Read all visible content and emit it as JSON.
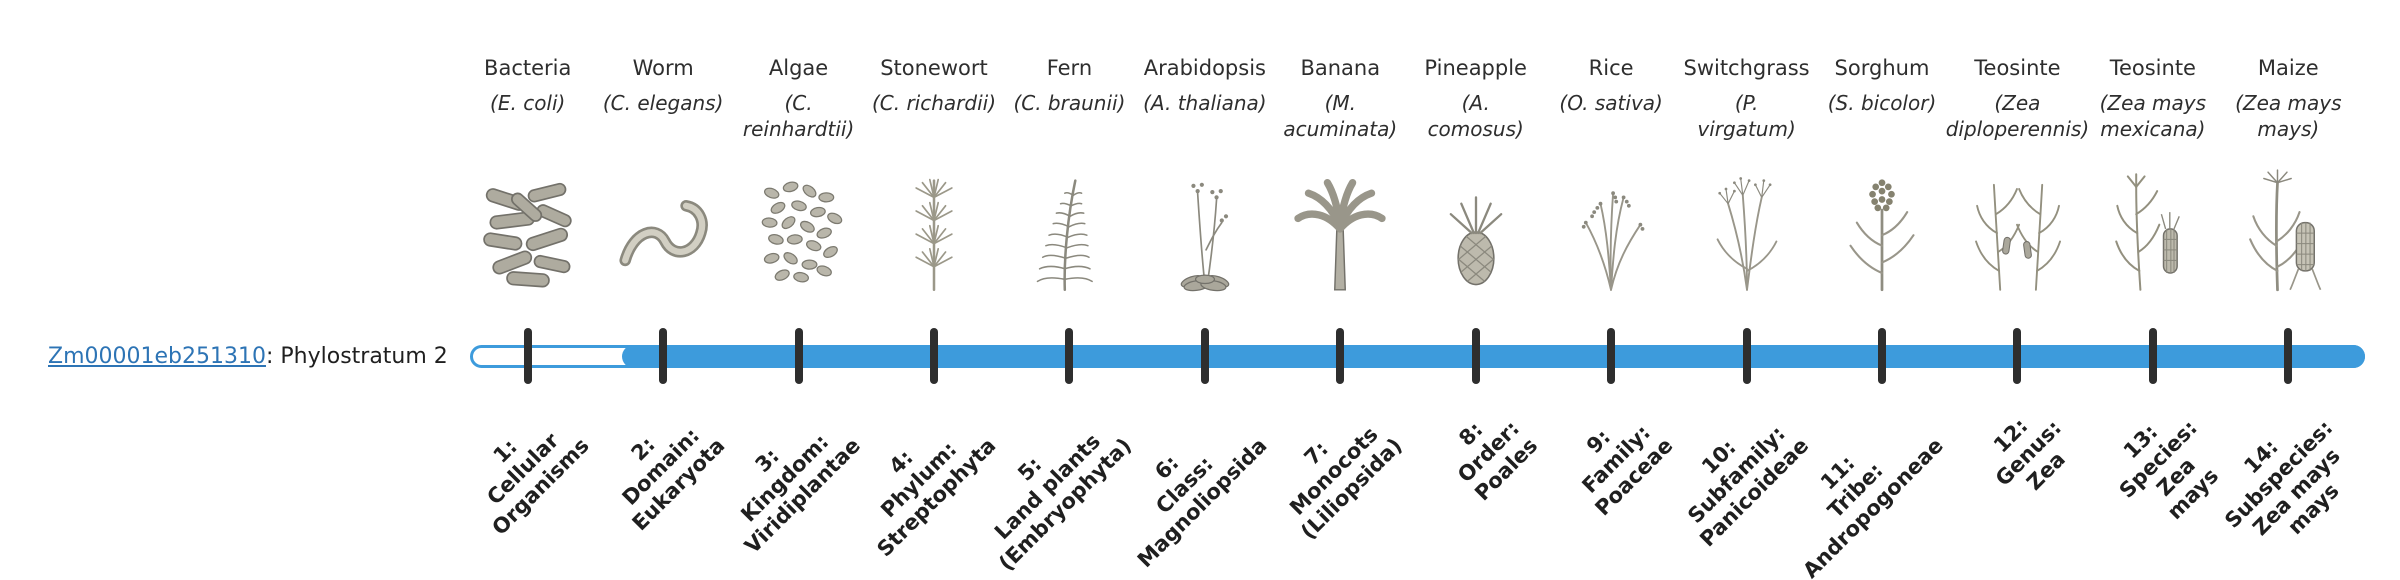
{
  "colors": {
    "bar": "#3d9bdc",
    "tick": "#2e2e2e",
    "link": "#2d74b5",
    "text": "#2e2e2e",
    "label": "#1f1f1f",
    "background": "#ffffff"
  },
  "gene": {
    "id": "Zm00001eb251310",
    "suffix": ": Phylostratum 2",
    "phylostratum": 2
  },
  "strata": [
    {
      "num": "1",
      "organism": "Bacteria",
      "sci": "(E. coli)",
      "icon": "bacteria",
      "label": "1:\nCellular\nOrganisms"
    },
    {
      "num": "2",
      "organism": "Worm",
      "sci": "(C. elegans)",
      "icon": "worm",
      "label": "2:\nDomain:\nEukaryota"
    },
    {
      "num": "3",
      "organism": "Algae",
      "sci": "(C.\nreinhardtii)",
      "icon": "algae",
      "label": "3:\nKingdom:\nViridiplantae"
    },
    {
      "num": "4",
      "organism": "Stonewort",
      "sci": "(C. richardii)",
      "icon": "stonewort",
      "label": "4:\nPhylum:\nStreptophyta"
    },
    {
      "num": "5",
      "organism": "Fern",
      "sci": "(C. braunii)",
      "icon": "fern",
      "label": "5:\nLand plants\n(Embryophyta)"
    },
    {
      "num": "6",
      "organism": "Arabidopsis",
      "sci": "(A. thaliana)",
      "icon": "arabidopsis",
      "label": "6:\nClass:\nMagnoliopsida"
    },
    {
      "num": "7",
      "organism": "Banana",
      "sci": "(M.\nacuminata)",
      "icon": "banana",
      "label": "7:\nMonocots\n(Liliopsida)"
    },
    {
      "num": "8",
      "organism": "Pineapple",
      "sci": "(A.\ncomosus)",
      "icon": "pineapple",
      "label": "8:\nOrder:\nPoales"
    },
    {
      "num": "9",
      "organism": "Rice",
      "sci": "(O. sativa)",
      "icon": "rice",
      "label": "9:\nFamily:\nPoaceae"
    },
    {
      "num": "10",
      "organism": "Switchgrass",
      "sci": "(P.\nvirgatum)",
      "icon": "switchgrass",
      "label": "10:\nSubfamily:\nPanicoideae"
    },
    {
      "num": "11",
      "organism": "Sorghum",
      "sci": "(S. bicolor)",
      "icon": "sorghum",
      "label": "11:\nTribe:\nAndropogoneae"
    },
    {
      "num": "12",
      "organism": "Teosinte",
      "sci": "(Zea\ndiploperennis)",
      "icon": "teosinte-diploperennis",
      "label": "12:\nGenus:\nZea"
    },
    {
      "num": "13",
      "organism": "Teosinte",
      "sci": "(Zea mays\nmexicana)",
      "icon": "teosinte-mexicana",
      "label": "13:\nSpecies:\nZea\nmays"
    },
    {
      "num": "14",
      "organism": "Maize",
      "sci": "(Zea mays\nmays)",
      "icon": "maize",
      "label": "14:\nSubspecies:\nZea mays\nmays"
    }
  ]
}
